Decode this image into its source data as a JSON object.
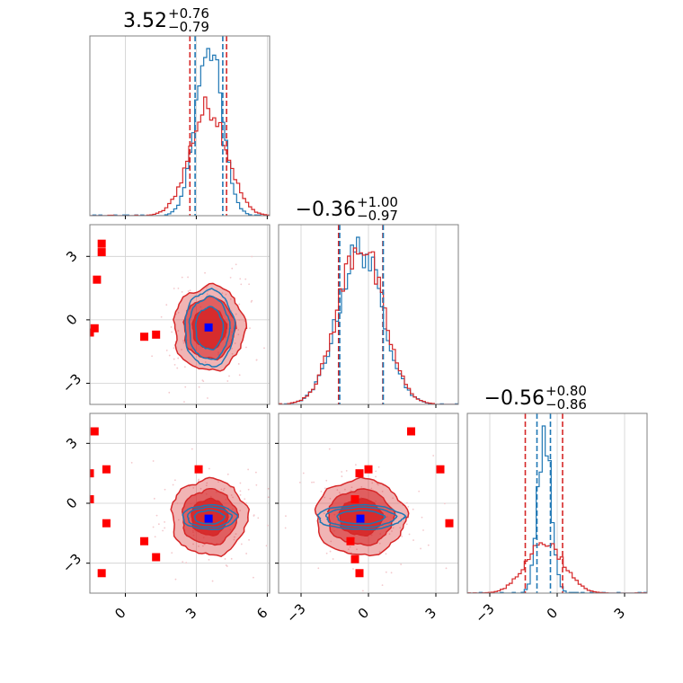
{
  "chart_data": {
    "type": "corner",
    "grid": true,
    "colors": {
      "red": "#d62728",
      "blue": "#1f77b4",
      "marker_red": "#ff0000",
      "marker_blue": "#0000ff",
      "scatter": "#f3c8cc"
    },
    "tick_values": [
      -3,
      0,
      3,
      6
    ],
    "tick_labels": {
      "neg3": "−3",
      "zero": "0",
      "three": "3",
      "six": "6"
    },
    "params": [
      {
        "range": [
          -1.5,
          6.1
        ],
        "ticks": [
          0,
          3,
          6
        ],
        "title_main": "3.52",
        "title_plus": "+0.76",
        "title_minus": "−0.79",
        "median": 3.52,
        "q_red": [
          2.73,
          4.28
        ],
        "q_blue": [
          2.95,
          4.12
        ]
      },
      {
        "range": [
          -4.0,
          4.0
        ],
        "ticks": [
          -3,
          0,
          3
        ],
        "title_main": "−0.36",
        "title_plus": "+1.00",
        "title_minus": "−0.97",
        "median": -0.36,
        "q_red": [
          -1.33,
          0.64
        ],
        "q_blue": [
          -1.28,
          0.66
        ]
      },
      {
        "range": [
          -4.0,
          4.0
        ],
        "ticks": [
          -3,
          0,
          3
        ],
        "title_main": "−0.56",
        "title_plus": "+0.80",
        "title_minus": "−0.86",
        "median": -0.56,
        "q_red": [
          -1.42,
          0.24
        ],
        "q_blue": [
          -0.9,
          -0.3
        ]
      }
    ],
    "panel_y_ranges": {
      "p10": [
        -4.0,
        4.5
      ],
      "p20": [
        -4.5,
        4.5
      ],
      "p21": [
        -4.5,
        4.5
      ]
    },
    "red_markers": {
      "p10": [
        [
          -1.0,
          3.6
        ],
        [
          -1.0,
          3.2
        ],
        [
          -1.2,
          1.9
        ],
        [
          -1.5,
          -0.6
        ],
        [
          -1.3,
          -0.4
        ],
        [
          0.8,
          -0.8
        ],
        [
          1.3,
          -0.7
        ]
      ],
      "p20": [
        [
          -1.3,
          3.6
        ],
        [
          -0.8,
          1.7
        ],
        [
          -1.5,
          1.5
        ],
        [
          -1.5,
          0.2
        ],
        [
          -0.8,
          -1.0
        ],
        [
          0.8,
          -1.9
        ],
        [
          1.3,
          -2.7
        ],
        [
          -1.0,
          -3.5
        ],
        [
          3.1,
          1.7
        ]
      ],
      "p21": [
        [
          -0.4,
          1.5
        ],
        [
          0.0,
          1.7
        ],
        [
          -0.6,
          0.2
        ],
        [
          -0.8,
          -1.9
        ],
        [
          -0.6,
          -2.8
        ],
        [
          -0.4,
          -3.5
        ],
        [
          1.9,
          3.6
        ],
        [
          3.2,
          1.7
        ],
        [
          3.6,
          -1.0
        ]
      ]
    },
    "blue_markers": {
      "p10": [
        3.52,
        -0.36
      ],
      "p20": [
        3.52,
        -0.77
      ],
      "p21": [
        -0.36,
        -0.77
      ]
    },
    "contours": {
      "p10": {
        "center": [
          3.55,
          -0.4
        ],
        "red_sigma": [
          0.75,
          1.0
        ],
        "blue_sigma": [
          0.55,
          0.95
        ]
      },
      "p20": {
        "center": [
          3.55,
          -0.7
        ],
        "red_sigma": [
          0.8,
          0.95
        ],
        "blue_sigma": [
          0.6,
          0.32
        ]
      },
      "p21": {
        "center": [
          -0.35,
          -0.7
        ],
        "red_sigma": [
          1.0,
          0.95
        ],
        "blue_sigma": [
          1.0,
          0.32
        ]
      }
    },
    "hist_red": {
      "p0": {
        "mean": 3.52,
        "sd": 0.78
      },
      "p1": {
        "mean": -0.36,
        "sd": 0.99
      },
      "p2": {
        "mean": -0.56,
        "sd": 0.83
      }
    },
    "hist_blue": {
      "p0": {
        "mean": 3.52,
        "sd": 0.55
      },
      "p1": {
        "mean": -0.36,
        "sd": 0.98
      },
      "p2": {
        "mean": -0.56,
        "sd": 0.3
      }
    }
  }
}
